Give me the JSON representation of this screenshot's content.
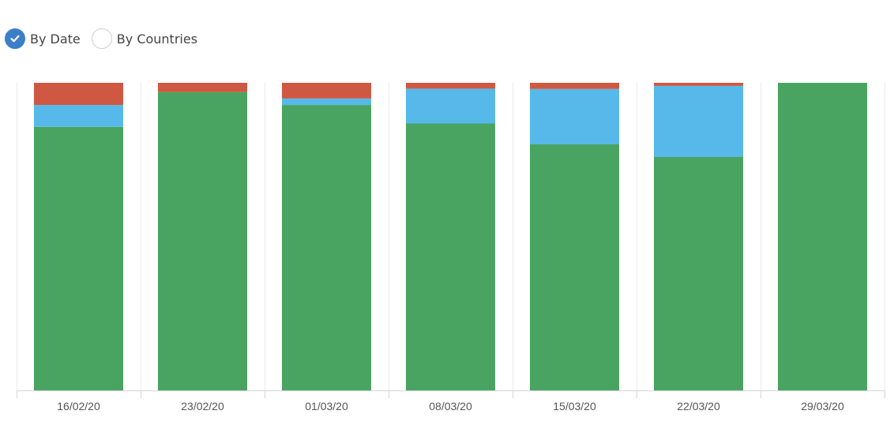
{
  "controls": {
    "options": [
      {
        "label": "By Date",
        "checked": true
      },
      {
        "label": "By Countries",
        "checked": false
      }
    ],
    "icon": "checkmark-icon"
  },
  "chart_data": {
    "type": "bar",
    "stacked": true,
    "normalized": true,
    "categories": [
      "16/02/20",
      "23/02/20",
      "01/03/20",
      "08/03/20",
      "15/03/20",
      "22/03/20",
      "29/03/20"
    ],
    "series": [
      {
        "color": "#4aa461",
        "values": [
          85.7,
          97.0,
          92.8,
          86.8,
          80.0,
          75.9,
          100.0
        ]
      },
      {
        "color": "#56b9ea",
        "values": [
          7.1,
          0.0,
          2.1,
          11.3,
          18.0,
          23.1,
          0.0
        ]
      },
      {
        "color": "#cf5842",
        "values": [
          7.2,
          3.0,
          5.1,
          1.9,
          2.0,
          1.0,
          0.0
        ]
      }
    ],
    "ylim": [
      0,
      100
    ],
    "grid": "vertical",
    "legend": "none",
    "colors": {
      "axis": "#d6d6d6",
      "grid": "#ebebeb"
    }
  }
}
